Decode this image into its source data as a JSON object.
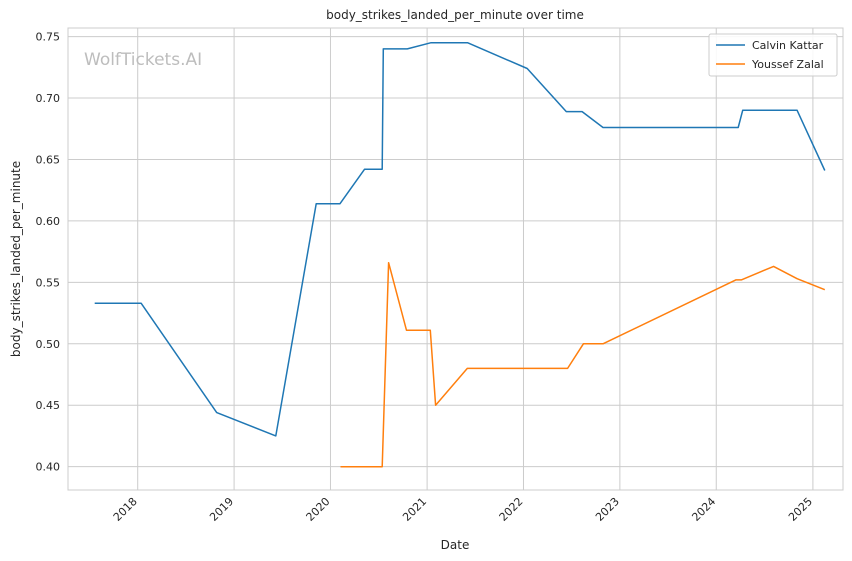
{
  "chart_data": {
    "type": "line",
    "title": "body_strikes_landed_per_minute over time",
    "xlabel": "Date",
    "ylabel": "body_strikes_landed_per_minute",
    "watermark": "WolfTickets.AI",
    "x_ticks": [
      "2018",
      "2019",
      "2020",
      "2021",
      "2022",
      "2023",
      "2024",
      "2025"
    ],
    "y_ticks": [
      "0.40",
      "0.45",
      "0.50",
      "0.55",
      "0.60",
      "0.65",
      "0.70",
      "0.75"
    ],
    "xlim": [
      "2017-04-12",
      "2025-04-25"
    ],
    "ylim": [
      0.381,
      0.757
    ],
    "grid": true,
    "legend_position": "top-right",
    "series": [
      {
        "name": "Calvin Kattar",
        "color": "#1f77b4",
        "points": [
          [
            "2017-07-22",
            0.533
          ],
          [
            "2018-01-14",
            0.533
          ],
          [
            "2018-10-27",
            0.444
          ],
          [
            "2019-06-08",
            0.425
          ],
          [
            "2019-11-08",
            0.614
          ],
          [
            "2020-02-06",
            0.614
          ],
          [
            "2020-05-09",
            0.642
          ],
          [
            "2020-07-15",
            0.642
          ],
          [
            "2020-07-19",
            0.74
          ],
          [
            "2020-10-18",
            0.74
          ],
          [
            "2021-01-16",
            0.745
          ],
          [
            "2021-06-03",
            0.745
          ],
          [
            "2022-01-15",
            0.724
          ],
          [
            "2022-06-12",
            0.689
          ],
          [
            "2022-08-11",
            0.689
          ],
          [
            "2022-10-29",
            0.676
          ],
          [
            "2024-03-24",
            0.676
          ],
          [
            "2024-04-10",
            0.69
          ],
          [
            "2024-11-02",
            0.69
          ],
          [
            "2025-02-15",
            0.641
          ]
        ]
      },
      {
        "name": "Youssef Zalal",
        "color": "#ff7f0e",
        "points": [
          [
            "2020-02-08",
            0.4
          ],
          [
            "2020-07-15",
            0.4
          ],
          [
            "2020-08-08",
            0.566
          ],
          [
            "2020-10-15",
            0.511
          ],
          [
            "2021-01-13",
            0.511
          ],
          [
            "2021-02-02",
            0.45
          ],
          [
            "2021-06-02",
            0.48
          ],
          [
            "2022-06-17",
            0.48
          ],
          [
            "2022-08-16",
            0.5
          ],
          [
            "2022-10-29",
            0.5
          ],
          [
            "2024-03-15",
            0.552
          ],
          [
            "2024-04-05",
            0.552
          ],
          [
            "2024-08-05",
            0.563
          ],
          [
            "2024-11-02",
            0.553
          ],
          [
            "2025-02-15",
            0.544
          ]
        ]
      }
    ]
  }
}
